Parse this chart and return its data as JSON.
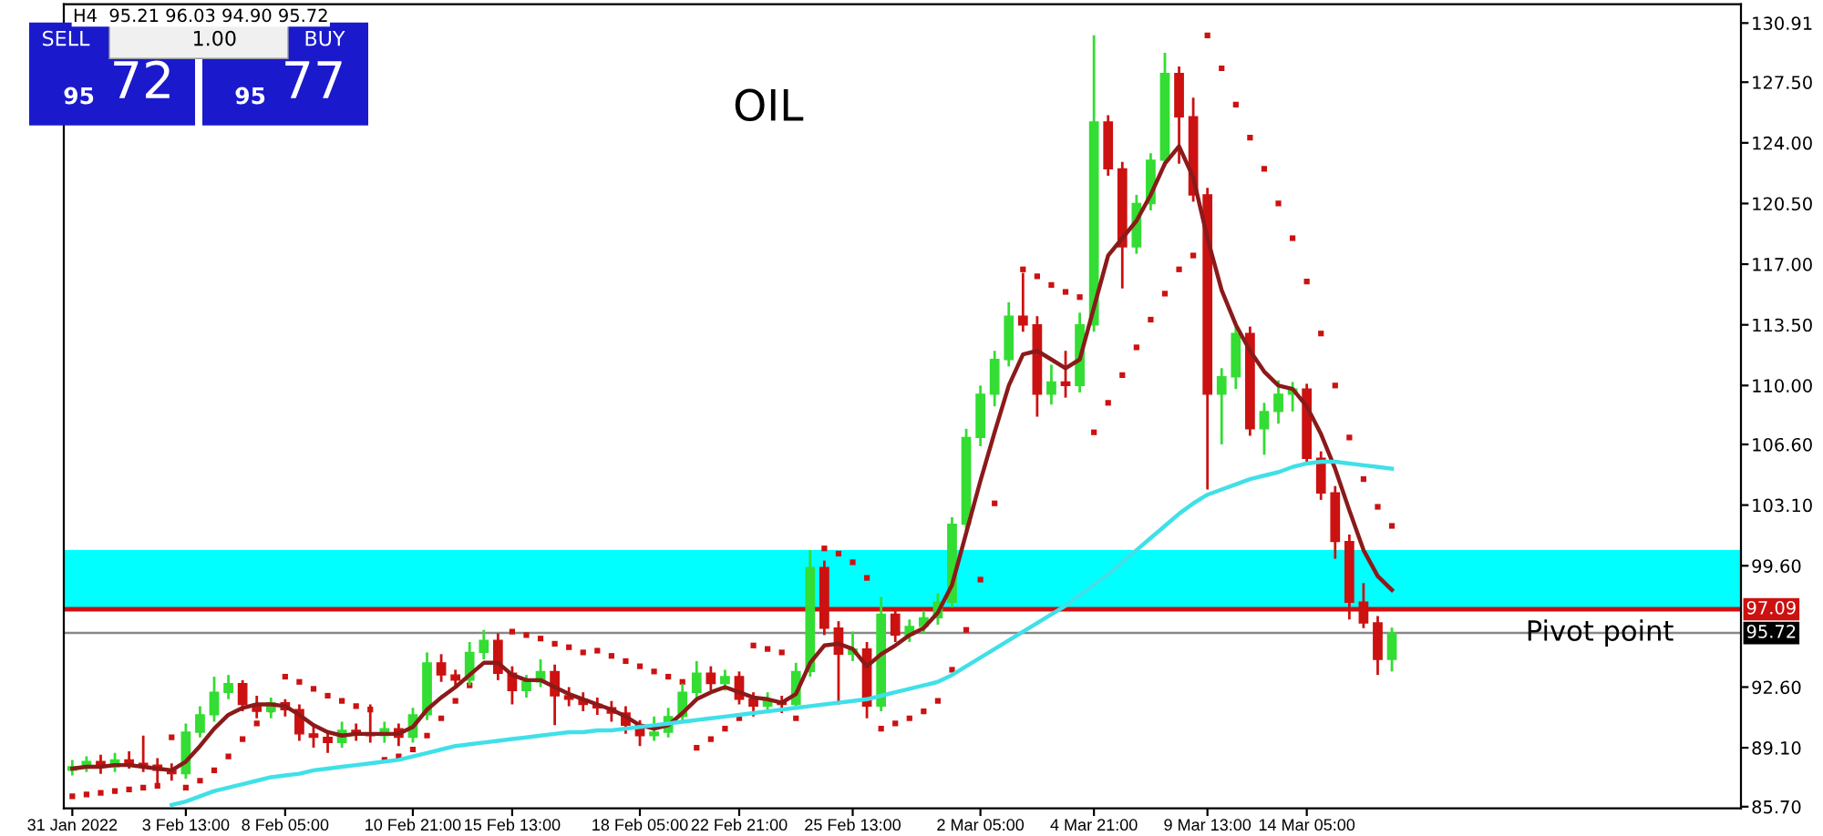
{
  "chart_data": {
    "type": "candlestick",
    "title": "OIL",
    "annotations": [
      "H4  95.21 96.03 94.90 95.72",
      "SELL",
      "1.00",
      "BUY",
      "95",
      "72",
      "95",
      "77",
      {
        "text": "97.09",
        "y": 97.09
      },
      {
        "text": "95.72",
        "y": 95.72
      }
    ],
    "categories": [
      "31 Jan 2022",
      null,
      null,
      null,
      null,
      null,
      null,
      null,
      "3 Feb 13:00",
      null,
      null,
      null,
      null,
      null,
      null,
      "8 Feb 05:00",
      null,
      null,
      null,
      null,
      null,
      null,
      null,
      null,
      "10 Feb 21:00",
      null,
      null,
      null,
      null,
      null,
      null,
      "15 Feb 13:00",
      null,
      null,
      null,
      null,
      null,
      null,
      null,
      null,
      "18 Feb 05:00",
      null,
      null,
      null,
      null,
      null,
      null,
      "22 Feb 21:00",
      null,
      null,
      null,
      null,
      null,
      null,
      null,
      "25 Feb 13:00",
      null,
      null,
      null,
      null,
      null,
      null,
      null,
      null,
      "2 Mar 05:00",
      null,
      null,
      null,
      null,
      null,
      null,
      null,
      "4 Mar 21:00",
      null,
      null,
      null,
      null,
      null,
      null,
      null,
      "9 Mar 13:00",
      null,
      null,
      null,
      null,
      null,
      null,
      "14 Mar 05:00",
      null,
      null,
      null,
      null,
      null,
      null,
      null,
      null,
      null,
      null,
      null,
      null,
      null,
      null,
      null,
      null,
      null,
      null,
      null,
      null,
      null,
      null,
      null,
      null,
      null,
      null,
      null,
      null,
      null,
      null
    ],
    "ohlc": [
      [
        87.8,
        88.4,
        87.5,
        88.0
      ],
      [
        88.0,
        88.6,
        87.7,
        88.3
      ],
      [
        88.3,
        88.7,
        87.6,
        88.0
      ],
      [
        88.0,
        88.8,
        87.7,
        88.4
      ],
      [
        88.4,
        88.9,
        87.9,
        88.2
      ],
      [
        88.2,
        89.8,
        87.7,
        88.1
      ],
      [
        88.1,
        88.5,
        87.0,
        87.8
      ],
      [
        87.8,
        88.2,
        87.2,
        87.6
      ],
      [
        87.6,
        90.5,
        87.3,
        90.0
      ],
      [
        90.0,
        91.5,
        89.7,
        91.0
      ],
      [
        91.0,
        93.2,
        90.6,
        92.3
      ],
      [
        92.3,
        93.3,
        91.9,
        92.8
      ],
      [
        92.8,
        93.0,
        91.2,
        91.6
      ],
      [
        91.6,
        92.1,
        90.8,
        91.2
      ],
      [
        91.2,
        92.0,
        90.8,
        91.7
      ],
      [
        91.7,
        91.9,
        90.9,
        91.3
      ],
      [
        91.3,
        91.6,
        89.5,
        89.9
      ],
      [
        89.9,
        90.4,
        89.1,
        89.7
      ],
      [
        89.7,
        90.0,
        88.8,
        89.4
      ],
      [
        89.4,
        90.6,
        89.1,
        90.1
      ],
      [
        90.1,
        90.5,
        89.5,
        89.9
      ],
      [
        89.9,
        91.6,
        89.4,
        89.8
      ],
      [
        89.8,
        90.6,
        89.4,
        90.2
      ],
      [
        90.2,
        90.5,
        89.2,
        89.7
      ],
      [
        89.7,
        91.4,
        89.4,
        91.0
      ],
      [
        91.0,
        94.6,
        90.7,
        94.0
      ],
      [
        94.0,
        94.5,
        92.9,
        93.3
      ],
      [
        93.3,
        93.6,
        92.6,
        93.0
      ],
      [
        93.0,
        95.2,
        92.7,
        94.6
      ],
      [
        94.6,
        95.9,
        94.2,
        95.3
      ],
      [
        95.3,
        95.7,
        93.0,
        93.4
      ],
      [
        93.4,
        93.8,
        91.6,
        92.4
      ],
      [
        92.4,
        93.3,
        92.0,
        92.9
      ],
      [
        92.9,
        94.2,
        92.6,
        93.5
      ],
      [
        93.5,
        93.9,
        90.4,
        92.1
      ],
      [
        92.1,
        92.6,
        91.5,
        91.9
      ],
      [
        91.9,
        92.3,
        91.2,
        91.6
      ],
      [
        91.6,
        92.0,
        91.0,
        91.4
      ],
      [
        91.4,
        91.8,
        90.6,
        91.1
      ],
      [
        91.1,
        91.5,
        89.9,
        90.4
      ],
      [
        90.4,
        90.7,
        89.2,
        89.8
      ],
      [
        89.8,
        90.9,
        89.5,
        90.0
      ],
      [
        90.0,
        91.4,
        89.7,
        90.9
      ],
      [
        90.9,
        92.8,
        90.6,
        92.3
      ],
      [
        92.3,
        94.1,
        92.0,
        93.4
      ],
      [
        93.4,
        93.8,
        92.4,
        92.8
      ],
      [
        92.8,
        93.6,
        92.4,
        93.2
      ],
      [
        93.2,
        93.5,
        91.6,
        91.9
      ],
      [
        91.9,
        92.3,
        90.9,
        91.5
      ],
      [
        91.5,
        92.3,
        91.2,
        91.8
      ],
      [
        91.8,
        92.1,
        91.1,
        91.6
      ],
      [
        91.6,
        94.0,
        91.3,
        93.5
      ],
      [
        93.5,
        100.5,
        93.2,
        99.5
      ],
      [
        99.5,
        99.9,
        95.6,
        96.0
      ],
      [
        96.0,
        96.4,
        91.6,
        94.5
      ],
      [
        94.5,
        95.8,
        94.1,
        94.8
      ],
      [
        94.8,
        95.2,
        90.8,
        91.5
      ],
      [
        91.5,
        97.8,
        91.2,
        96.8
      ],
      [
        96.8,
        97.2,
        95.2,
        95.6
      ],
      [
        95.6,
        96.5,
        95.2,
        96.1
      ],
      [
        96.1,
        97.0,
        95.7,
        96.6
      ],
      [
        96.6,
        98.0,
        96.2,
        97.5
      ],
      [
        97.5,
        102.4,
        97.2,
        102.0
      ],
      [
        102.0,
        107.5,
        101.6,
        107.0
      ],
      [
        107.0,
        110.0,
        106.5,
        109.5
      ],
      [
        109.5,
        112.0,
        108.8,
        111.5
      ],
      [
        111.5,
        114.8,
        111.1,
        114.0
      ],
      [
        114.0,
        116.5,
        113.1,
        113.5
      ],
      [
        113.5,
        114.0,
        108.2,
        109.5
      ],
      [
        109.5,
        111.2,
        108.9,
        110.2
      ],
      [
        110.2,
        112.0,
        109.3,
        110.0
      ],
      [
        110.0,
        114.2,
        109.6,
        113.5
      ],
      [
        113.5,
        130.2,
        113.1,
        125.2
      ],
      [
        125.2,
        125.6,
        122.1,
        122.5
      ],
      [
        122.5,
        122.9,
        115.6,
        118.0
      ],
      [
        118.0,
        121.0,
        117.6,
        120.5
      ],
      [
        120.5,
        123.4,
        120.1,
        123.0
      ],
      [
        123.0,
        129.2,
        122.6,
        128.0
      ],
      [
        128.0,
        128.4,
        122.8,
        125.5
      ],
      [
        125.5,
        126.6,
        120.6,
        121.0
      ],
      [
        121.0,
        121.4,
        104.0,
        109.5
      ],
      [
        109.5,
        111.0,
        106.6,
        110.5
      ],
      [
        110.5,
        113.6,
        109.8,
        113.0
      ],
      [
        113.0,
        113.4,
        107.1,
        107.5
      ],
      [
        107.5,
        109.0,
        106.0,
        108.5
      ],
      [
        108.5,
        110.3,
        107.8,
        109.5
      ],
      [
        109.5,
        110.2,
        108.5,
        109.8
      ],
      [
        109.8,
        110.1,
        105.4,
        105.8
      ],
      [
        105.8,
        106.2,
        103.4,
        103.8
      ],
      [
        103.8,
        104.2,
        100.0,
        101.0
      ],
      [
        101.0,
        101.4,
        96.5,
        97.5
      ],
      [
        97.5,
        98.6,
        96.0,
        96.3
      ],
      [
        96.3,
        96.7,
        93.3,
        94.2
      ],
      [
        94.2,
        96.03,
        93.5,
        95.72
      ],
      null,
      null,
      null,
      null,
      null,
      null,
      null,
      null,
      null,
      null,
      null,
      null,
      null,
      null,
      null,
      null,
      null,
      null,
      null,
      null,
      null,
      null,
      null,
      null
    ],
    "series": [
      {
        "type": "line",
        "color": "#8b1a1a",
        "values": [
          87.9,
          88.0,
          88.0,
          88.1,
          88.1,
          88.0,
          87.9,
          87.8,
          88.3,
          89.2,
          90.2,
          91.0,
          91.4,
          91.6,
          91.6,
          91.5,
          91.0,
          90.4,
          90.0,
          89.8,
          89.9,
          89.9,
          89.9,
          89.9,
          90.3,
          91.3,
          92.0,
          92.6,
          93.3,
          94.0,
          94.0,
          93.3,
          93.0,
          93.0,
          92.6,
          92.2,
          91.9,
          91.6,
          91.3,
          90.9,
          90.4,
          90.2,
          90.4,
          91.1,
          91.9,
          92.3,
          92.6,
          92.3,
          92.0,
          91.9,
          91.7,
          92.2,
          94.0,
          95.0,
          95.1,
          94.8,
          93.8,
          94.5,
          95.0,
          95.6,
          96.0,
          96.9,
          98.5,
          101.5,
          104.5,
          107.3,
          110.0,
          111.8,
          112.0,
          111.5,
          111.0,
          111.5,
          114.5,
          117.5,
          118.5,
          119.5,
          121.0,
          122.8,
          123.8,
          122.0,
          118.5,
          115.5,
          113.5,
          112.0,
          110.8,
          110.0,
          109.8,
          108.8,
          107.2,
          105.2,
          102.8,
          100.5,
          99.0,
          98.2,
          null,
          null,
          null,
          null,
          null,
          null,
          null,
          null,
          null,
          null,
          null,
          null,
          null,
          null,
          null,
          null,
          null,
          null,
          null,
          null,
          null,
          null,
          null,
          null
        ]
      },
      {
        "type": "line",
        "color": "#40e0e8",
        "values": [
          null,
          null,
          null,
          null,
          null,
          null,
          null,
          85.8,
          86.0,
          86.3,
          86.6,
          86.8,
          87.0,
          87.2,
          87.4,
          87.5,
          87.6,
          87.8,
          87.9,
          88.0,
          88.1,
          88.2,
          88.3,
          88.4,
          88.6,
          88.8,
          89.0,
          89.2,
          89.3,
          89.4,
          89.5,
          89.6,
          89.7,
          89.8,
          89.9,
          90.0,
          90.0,
          90.1,
          90.1,
          90.2,
          90.3,
          90.4,
          90.5,
          90.6,
          90.7,
          90.8,
          90.9,
          91.0,
          91.1,
          91.2,
          91.3,
          91.4,
          91.5,
          91.6,
          91.7,
          91.8,
          91.9,
          92.1,
          92.3,
          92.5,
          92.7,
          92.9,
          93.3,
          93.8,
          94.3,
          94.8,
          95.3,
          95.8,
          96.3,
          96.8,
          97.3,
          97.9,
          98.5,
          99.1,
          99.8,
          100.5,
          101.2,
          101.9,
          102.6,
          103.2,
          103.7,
          104.0,
          104.3,
          104.6,
          104.8,
          105.0,
          105.3,
          105.5,
          105.6,
          105.6,
          105.5,
          105.4,
          105.3,
          105.2,
          null,
          null,
          null,
          null,
          null,
          null,
          null,
          null,
          null,
          null,
          null,
          null,
          null,
          null,
          null,
          null,
          null,
          null,
          null,
          null,
          null,
          null,
          null,
          null
        ]
      },
      {
        "type": "scatter",
        "color": "#cc1111",
        "marker": "square",
        "values": [
          86.3,
          86.4,
          86.5,
          86.6,
          86.7,
          86.8,
          86.9,
          89.7,
          86.8,
          87.2,
          87.8,
          88.6,
          89.6,
          90.5,
          91.3,
          93.2,
          92.9,
          92.5,
          92.1,
          91.8,
          91.5,
          91.3,
          88.4,
          88.6,
          89.0,
          89.8,
          90.8,
          91.8,
          92.7,
          null,
          null,
          95.8,
          95.6,
          95.4,
          95.1,
          94.9,
          94.6,
          94.7,
          94.4,
          94.1,
          93.8,
          93.5,
          93.2,
          92.9,
          89.1,
          89.6,
          90.2,
          90.8,
          95.0,
          94.8,
          94.6,
          90.8,
          null,
          100.6,
          100.3,
          99.8,
          98.9,
          90.2,
          90.5,
          90.8,
          91.2,
          91.8,
          93.6,
          95.9,
          98.8,
          103.2,
          null,
          116.7,
          116.3,
          115.8,
          115.4,
          115.1,
          107.3,
          109.0,
          110.6,
          112.2,
          113.8,
          115.3,
          116.7,
          117.5,
          130.2,
          128.3,
          126.2,
          124.3,
          122.5,
          120.5,
          118.5,
          116.0,
          113.0,
          110.0,
          107.0,
          104.6,
          103.0,
          101.9,
          null,
          null,
          null,
          null,
          null,
          null,
          null,
          null,
          null,
          null,
          null,
          null,
          null,
          null,
          null,
          null,
          null,
          null,
          null,
          null,
          null,
          null,
          null,
          null
        ]
      }
    ],
    "bands": [
      {
        "axis": "y",
        "from": 97.09,
        "to": 100.5,
        "color": "#00ffff"
      }
    ],
    "ref_lines": [
      {
        "axis": "y",
        "value": 97.09,
        "color": "#cc1111",
        "line_style": "solid"
      },
      {
        "axis": "y",
        "value": 95.72,
        "color": "#888888",
        "line_style": "solid",
        "label": "Pivot point"
      }
    ],
    "ylim": [
      85.6,
      132.0
    ],
    "yticks": [
      {
        "value": 85.7,
        "label": "85.70"
      },
      {
        "value": 89.1,
        "label": "89.10"
      },
      {
        "value": 92.6,
        "label": "92.60"
      },
      {
        "value": 99.6,
        "label": "99.60"
      },
      {
        "value": 103.1,
        "label": "103.10"
      },
      {
        "value": 106.6,
        "label": "106.60"
      },
      {
        "value": 110.0,
        "label": "110.00"
      },
      {
        "value": 113.5,
        "label": "113.50"
      },
      {
        "value": 117.0,
        "label": "117.00"
      },
      {
        "value": 120.5,
        "label": "120.50"
      },
      {
        "value": 124.0,
        "label": "124.00"
      },
      {
        "value": 127.5,
        "label": "127.50"
      },
      {
        "value": 130.91,
        "label": "130.91"
      }
    ],
    "grid": false,
    "legend": false
  }
}
